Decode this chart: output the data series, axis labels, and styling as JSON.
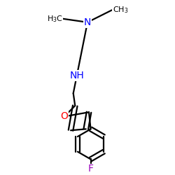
{
  "bg_color": "#ffffff",
  "atom_colors": {
    "N_dim": "#0000ff",
    "N_sec": "#0000ff",
    "O": "#ff0000",
    "F": "#9900bb",
    "C": "#000000"
  },
  "bond_color": "#000000",
  "bond_width": 1.6,
  "font_size_atom": 9,
  "figsize": [
    2.5,
    2.5
  ],
  "dpi": 100
}
